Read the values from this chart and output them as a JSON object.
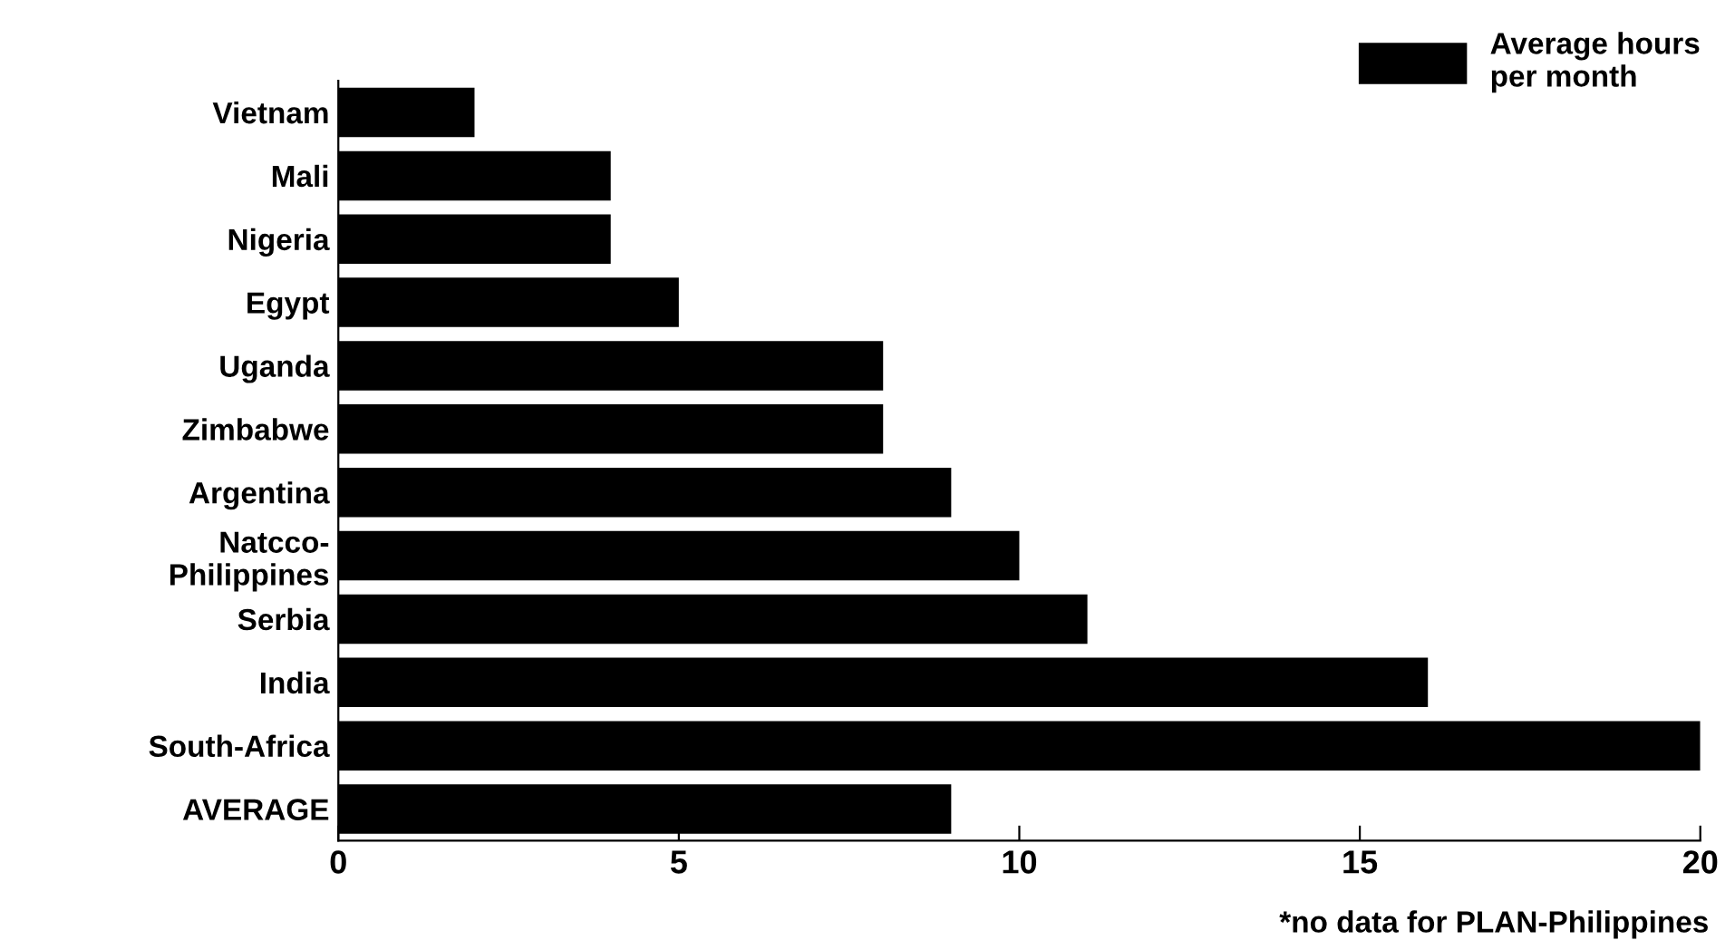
{
  "chart_data": {
    "type": "bar",
    "orientation": "horizontal",
    "categories": [
      "Vietnam",
      "Mali",
      "Nigeria",
      "Egypt",
      "Uganda",
      "Zimbabwe",
      "Argentina",
      "Natcco-\nPhilippines",
      "Serbia",
      "India",
      "South-Africa",
      "AVERAGE"
    ],
    "series": [
      {
        "name": "Average hours\nper month",
        "color": "#000000",
        "values": [
          2,
          4,
          4,
          5,
          8,
          8,
          9,
          10,
          11,
          16,
          20,
          9
        ]
      }
    ],
    "xlim": [
      0,
      20
    ],
    "xticks": [
      0,
      5,
      10,
      15,
      20
    ],
    "annotations": [
      "*no data for PLAN-Philippines"
    ],
    "legend": "top right",
    "grid": false
  }
}
